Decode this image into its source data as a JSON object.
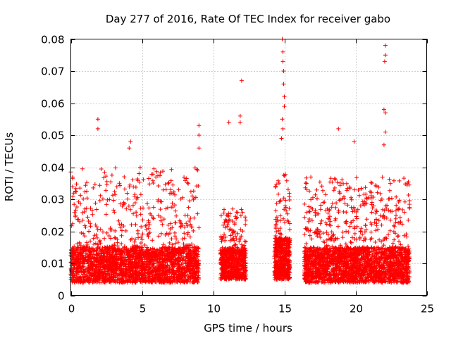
{
  "chart_data": {
    "type": "scatter",
    "title": "Day 277 of 2016, Rate Of TEC Index for receiver gabo",
    "xlabel": "GPS time / hours",
    "ylabel": "ROTI / TECUs",
    "xlim": [
      0,
      25
    ],
    "ylim": [
      0,
      0.08
    ],
    "xticks": [
      0,
      5,
      10,
      15,
      20,
      25
    ],
    "xtick_labels": [
      "0",
      "5",
      "10",
      "15",
      "20",
      "25"
    ],
    "yticks": [
      0,
      0.01,
      0.02,
      0.03,
      0.04,
      0.05,
      0.06,
      0.07,
      0.08
    ],
    "ytick_labels": [
      "0",
      "0.01",
      "0.02",
      "0.03",
      "0.04",
      "0.05",
      "0.06",
      "0.07",
      "0.08"
    ],
    "grid": true,
    "marker": "+",
    "color": "#ff0000",
    "series": [
      {
        "name": "ROTI",
        "segments": [
          {
            "x_start": 0.0,
            "x_end": 9.0,
            "count": 2600,
            "base_min": 0.004,
            "base_max": 0.015,
            "spread": 0.025
          },
          {
            "x_start": 10.5,
            "x_end": 12.3,
            "count": 700,
            "base_min": 0.005,
            "base_max": 0.015,
            "spread": 0.012
          },
          {
            "x_start": 14.3,
            "x_end": 15.4,
            "count": 550,
            "base_min": 0.005,
            "base_max": 0.018,
            "spread": 0.02
          },
          {
            "x_start": 16.4,
            "x_end": 23.8,
            "count": 2400,
            "base_min": 0.004,
            "base_max": 0.015,
            "spread": 0.022
          }
        ],
        "notable_points": [
          {
            "x": 1.9,
            "y": 0.055
          },
          {
            "x": 1.9,
            "y": 0.052
          },
          {
            "x": 4.2,
            "y": 0.048
          },
          {
            "x": 4.1,
            "y": 0.046
          },
          {
            "x": 9.0,
            "y": 0.053
          },
          {
            "x": 9.0,
            "y": 0.05
          },
          {
            "x": 9.0,
            "y": 0.046
          },
          {
            "x": 11.9,
            "y": 0.056
          },
          {
            "x": 11.9,
            "y": 0.054
          },
          {
            "x": 12.0,
            "y": 0.067
          },
          {
            "x": 11.1,
            "y": 0.054
          },
          {
            "x": 14.85,
            "y": 0.08
          },
          {
            "x": 14.9,
            "y": 0.076
          },
          {
            "x": 14.9,
            "y": 0.073
          },
          {
            "x": 14.95,
            "y": 0.07
          },
          {
            "x": 14.95,
            "y": 0.066
          },
          {
            "x": 15.0,
            "y": 0.062
          },
          {
            "x": 15.0,
            "y": 0.059
          },
          {
            "x": 14.85,
            "y": 0.055
          },
          {
            "x": 14.9,
            "y": 0.052
          },
          {
            "x": 14.8,
            "y": 0.049
          },
          {
            "x": 18.8,
            "y": 0.052
          },
          {
            "x": 22.1,
            "y": 0.078
          },
          {
            "x": 22.1,
            "y": 0.075
          },
          {
            "x": 22.05,
            "y": 0.073
          },
          {
            "x": 22.0,
            "y": 0.058
          },
          {
            "x": 22.1,
            "y": 0.057
          },
          {
            "x": 22.1,
            "y": 0.051
          },
          {
            "x": 22.0,
            "y": 0.047
          },
          {
            "x": 19.9,
            "y": 0.048
          }
        ]
      }
    ]
  }
}
